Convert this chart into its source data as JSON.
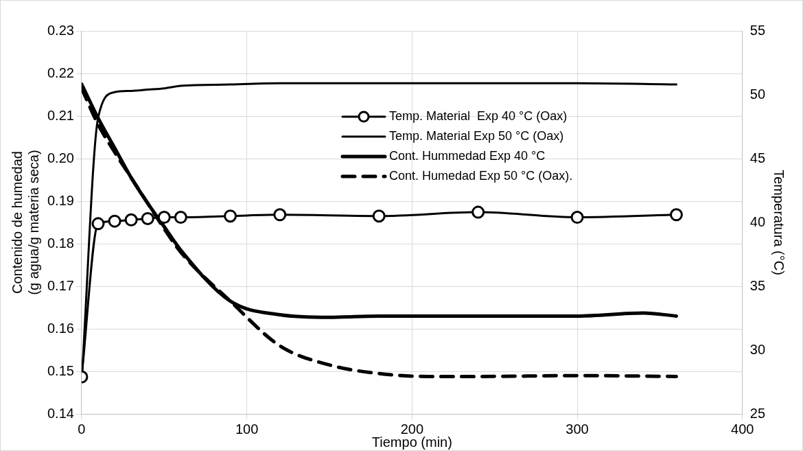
{
  "chart_data": {
    "type": "line",
    "xlabel": "Tiempo (min)",
    "ylabel": "Contenido de humedad\n(g agua/g materia seca)",
    "y2label": "Temperatura (°C)",
    "xlim": [
      0,
      400
    ],
    "xticks": [
      0,
      100,
      200,
      300,
      400
    ],
    "ylim": [
      0.14,
      0.23
    ],
    "yticks": [
      0.14,
      0.15,
      0.16,
      0.17,
      0.18,
      0.19,
      {
        "value": 0.2,
        "label": "0.20"
      },
      0.21,
      0.22,
      0.23
    ],
    "y2lim": [
      25,
      55
    ],
    "y2ticks": [
      25,
      30,
      35,
      40,
      45,
      50,
      55
    ],
    "grid": true,
    "legend": "top right",
    "series": [
      {
        "name": "Temp. Material  Exp 40 °C (Oax)",
        "color": "#000000",
        "axis": "y2",
        "marker": "circle",
        "line_style": "solid",
        "x": [
          0,
          10,
          20,
          30,
          40,
          50,
          60,
          90,
          120,
          180,
          240,
          300,
          360
        ],
        "values": [
          27.9,
          39.9,
          40.1,
          40.2,
          40.3,
          40.4,
          40.4,
          40.5,
          40.6,
          40.5,
          40.8,
          40.4,
          40.6
        ]
      },
      {
        "name": "Temp. Material Exp 50 °C (Oax)",
        "color": "#000000",
        "axis": "y2",
        "marker": "none",
        "line_style": "solid",
        "x": [
          0,
          10,
          20,
          30,
          40,
          50,
          60,
          90,
          120,
          180,
          240,
          300,
          360
        ],
        "values": [
          27.5,
          48.2,
          50.2,
          50.3,
          50.4,
          50.5,
          50.7,
          50.8,
          50.9,
          50.9,
          50.9,
          50.9,
          50.8
        ]
      },
      {
        "name": "Cont. Hummedad Exp 40 °C",
        "color": "#000000",
        "marker": "none",
        "line_style": "solid",
        "x": [
          0,
          10,
          20,
          30,
          40,
          50,
          60,
          90,
          120,
          150,
          180,
          240,
          300,
          340,
          360
        ],
        "values": [
          0.2175,
          0.2095,
          0.2025,
          0.1955,
          0.1895,
          0.184,
          0.1785,
          0.1665,
          0.1633,
          0.1627,
          0.163,
          0.163,
          0.163,
          0.1637,
          0.163
        ]
      },
      {
        "name": "Cont. Humedad Exp 50 °C (Oax).",
        "color": "#000000",
        "marker": "none",
        "line_style": "dashed",
        "x": [
          0,
          10,
          20,
          30,
          40,
          50,
          60,
          90,
          120,
          150,
          180,
          210,
          240,
          300,
          360
        ],
        "values": [
          0.2165,
          0.208,
          0.2015,
          0.1955,
          0.1895,
          0.1835,
          0.178,
          0.1665,
          0.156,
          0.1515,
          0.1495,
          0.1488,
          0.1488,
          0.149,
          0.1488
        ]
      }
    ]
  }
}
